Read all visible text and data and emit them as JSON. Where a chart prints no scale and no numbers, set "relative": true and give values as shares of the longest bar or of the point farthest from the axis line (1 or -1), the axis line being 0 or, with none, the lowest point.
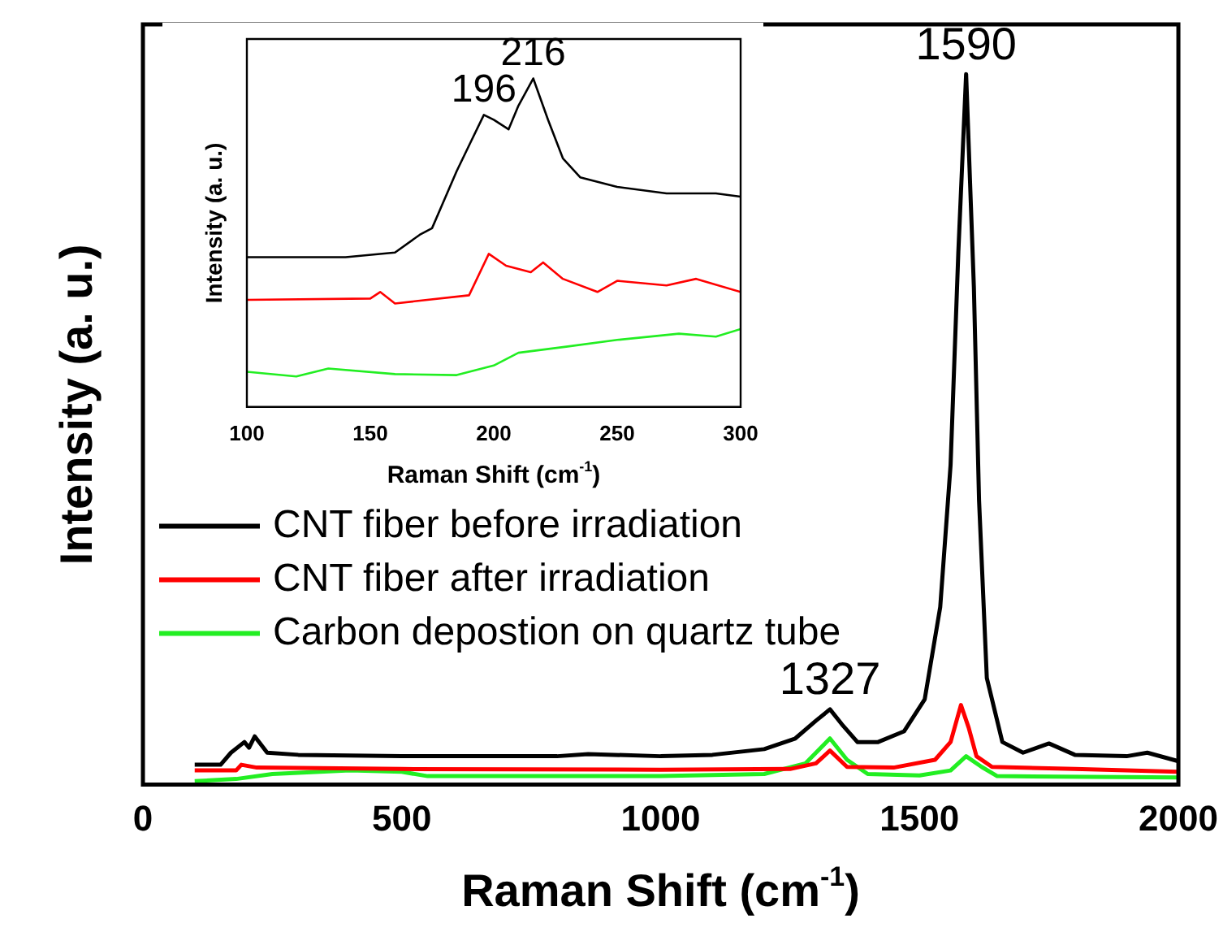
{
  "chart_data": [
    {
      "type": "line",
      "xlabel": "Raman Shift (cm$^{-1}$)",
      "ylabel": "Intensity (a. u.)",
      "xlim": [
        0,
        2000
      ],
      "xticks": [
        0,
        500,
        1000,
        1500,
        2000
      ],
      "relative": true,
      "legend": "left",
      "grid": false,
      "marker": "none",
      "line_style": "solid",
      "annotations": [
        {
          "text": "1590",
          "x": 1590,
          "y": 1.0
        },
        {
          "text": "1327",
          "x": 1327,
          "y": 0.106
        }
      ],
      "series": [
        {
          "name": "CNT fiber before irradiation",
          "color": "#000000",
          "x": [
            100,
            150,
            170,
            196,
            205,
            216,
            240,
            300,
            500,
            800,
            860,
            1000,
            1100,
            1200,
            1260,
            1300,
            1327,
            1350,
            1380,
            1420,
            1470,
            1510,
            1540,
            1560,
            1575,
            1590,
            1605,
            1615,
            1630,
            1660,
            1700,
            1750,
            1800,
            1900,
            1940,
            2000
          ],
          "values": [
            0.028,
            0.028,
            0.045,
            0.06,
            0.052,
            0.068,
            0.045,
            0.042,
            0.04,
            0.04,
            0.043,
            0.04,
            0.042,
            0.05,
            0.065,
            0.09,
            0.106,
            0.085,
            0.06,
            0.06,
            0.075,
            0.12,
            0.25,
            0.45,
            0.75,
            1.0,
            0.7,
            0.4,
            0.15,
            0.06,
            0.045,
            0.058,
            0.042,
            0.04,
            0.045,
            0.033
          ]
        },
        {
          "name": "CNT fiber after irradiation",
          "color": "#ff0000",
          "x": [
            100,
            180,
            190,
            220,
            500,
            1000,
            1250,
            1300,
            1327,
            1360,
            1450,
            1530,
            1560,
            1580,
            1595,
            1610,
            1640,
            1800,
            2000
          ],
          "values": [
            0.02,
            0.02,
            0.028,
            0.024,
            0.022,
            0.021,
            0.022,
            0.03,
            0.048,
            0.025,
            0.024,
            0.035,
            0.06,
            0.112,
            0.08,
            0.04,
            0.025,
            0.022,
            0.018
          ]
        },
        {
          "name": "Carbon depostion on quartz tube",
          "color": "#22ee22",
          "x": [
            100,
            180,
            250,
            400,
            500,
            550,
            1000,
            1200,
            1280,
            1327,
            1360,
            1400,
            1500,
            1560,
            1590,
            1620,
            1650,
            2000
          ],
          "values": [
            0.005,
            0.008,
            0.015,
            0.02,
            0.018,
            0.012,
            0.012,
            0.015,
            0.03,
            0.065,
            0.035,
            0.015,
            0.013,
            0.02,
            0.04,
            0.025,
            0.012,
            0.01
          ]
        }
      ]
    },
    {
      "type": "line",
      "xlabel": "Raman Shift (cm$^{-1}$)",
      "ylabel": "Intensity (a. u.)",
      "xlim": [
        100,
        300
      ],
      "xticks": [
        100,
        150,
        200,
        250,
        300
      ],
      "relative": true,
      "grid": false,
      "marker": "none",
      "line_style": "solid",
      "annotations": [
        {
          "text": "196",
          "x": 196,
          "y": 0.889
        },
        {
          "text": "216",
          "x": 216,
          "y": 1.0
        }
      ],
      "series": [
        {
          "color": "#000000",
          "x": [
            100,
            120,
            140,
            160,
            170,
            175,
            185,
            190,
            196,
            200,
            206,
            210,
            216,
            222,
            228,
            235,
            250,
            270,
            290,
            300
          ],
          "values": [
            0.456,
            0.456,
            0.456,
            0.47,
            0.524,
            0.544,
            0.718,
            0.796,
            0.889,
            0.874,
            0.845,
            0.917,
            1.0,
            0.874,
            0.757,
            0.699,
            0.67,
            0.65,
            0.65,
            0.64
          ]
        },
        {
          "color": "#ff0000",
          "x": [
            100,
            150,
            154,
            160,
            190,
            198,
            205,
            215,
            220,
            228,
            242,
            250,
            270,
            282,
            300
          ],
          "values": [
            0.326,
            0.33,
            0.35,
            0.315,
            0.34,
            0.466,
            0.43,
            0.41,
            0.44,
            0.39,
            0.35,
            0.384,
            0.37,
            0.39,
            0.35
          ]
        },
        {
          "color": "#22ee22",
          "x": [
            100,
            120,
            133,
            160,
            185,
            200,
            210,
            230,
            250,
            275,
            290,
            300
          ],
          "values": [
            0.107,
            0.093,
            0.117,
            0.1,
            0.097,
            0.126,
            0.165,
            0.184,
            0.204,
            0.223,
            0.214,
            0.237
          ]
        }
      ]
    }
  ]
}
